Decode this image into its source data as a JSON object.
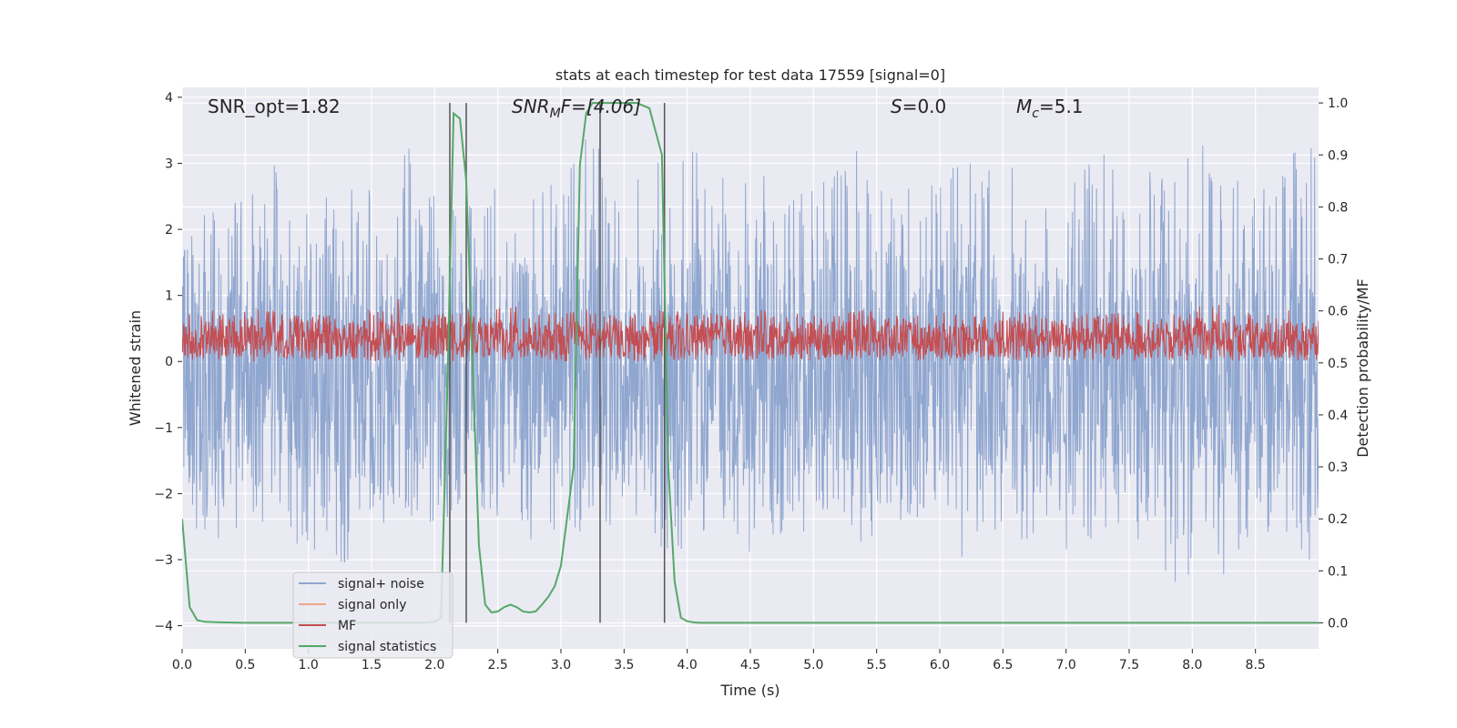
{
  "chart_data": {
    "type": "line",
    "title": "stats at each timestep for test data 17559 [signal=0]",
    "xlabel": "Time (s)",
    "ylabel_left": "Whitened strain",
    "ylabel_right": "Detection probability/MF",
    "xlim": [
      0,
      9.0
    ],
    "ylim_left": [
      -4.35,
      4.15
    ],
    "ylim_right": [
      -0.05,
      1.03
    ],
    "xticks": [
      0.0,
      0.5,
      1.0,
      1.5,
      2.0,
      2.5,
      3.0,
      3.5,
      4.0,
      4.5,
      5.0,
      5.5,
      6.0,
      6.5,
      7.0,
      7.5,
      8.0,
      8.5
    ],
    "xtick_labels": [
      "0.0",
      "0.5",
      "1.0",
      "1.5",
      "2.0",
      "2.5",
      "3.0",
      "3.5",
      "4.0",
      "4.5",
      "5.0",
      "5.5",
      "6.0",
      "6.5",
      "7.0",
      "7.5",
      "8.0",
      "8.5"
    ],
    "yticks_left": [
      -4,
      -3,
      -2,
      -1,
      0,
      1,
      2,
      3,
      4
    ],
    "ytick_labels_left": [
      "−4",
      "−3",
      "−2",
      "−1",
      "0",
      "1",
      "2",
      "3",
      "4"
    ],
    "yticks_right": [
      0.0,
      0.1,
      0.2,
      0.3,
      0.4,
      0.5,
      0.6,
      0.7,
      0.8,
      0.9,
      1.0
    ],
    "ytick_labels_right": [
      "0.0",
      "0.1",
      "0.2",
      "0.3",
      "0.4",
      "0.5",
      "0.6",
      "0.7",
      "0.8",
      "0.9",
      "1.0"
    ],
    "grid": true,
    "legend_position": "bottom-left",
    "annotations": {
      "snr_opt": "SNR_opt=1.82",
      "snr_mf_base": "SNR",
      "snr_mf_sub": "M",
      "snr_mf_rest": "F=[4.06]",
      "s_base": "S",
      "s_rest": "=0.0",
      "mc_base": "M",
      "mc_sub": "c",
      "mc_rest": "=5.1"
    },
    "vertical_lines": [
      2.12,
      2.25,
      3.31,
      3.82
    ],
    "vertical_line_range": [
      0.0,
      1.0
    ],
    "legend": [
      {
        "name": "signal+ noise",
        "color": "#8fa6cf"
      },
      {
        "name": "signal only",
        "color": "#eea587"
      },
      {
        "name": "MF",
        "color": "#c44e52"
      },
      {
        "name": "signal statistics",
        "color": "#55a868"
      }
    ],
    "series": [
      {
        "name": "signal statistics",
        "axis": "right",
        "color": "#55a868",
        "x": [
          0.0,
          0.06,
          0.12,
          0.18,
          0.3,
          0.5,
          1.0,
          1.5,
          1.9,
          2.0,
          2.05,
          2.1,
          2.15,
          2.2,
          2.25,
          2.3,
          2.35,
          2.4,
          2.45,
          2.5,
          2.55,
          2.6,
          2.65,
          2.7,
          2.75,
          2.8,
          2.85,
          2.9,
          2.95,
          3.0,
          3.1,
          3.15,
          3.2,
          3.25,
          3.3,
          3.35,
          3.4,
          3.5,
          3.6,
          3.7,
          3.8,
          3.85,
          3.9,
          3.95,
          4.0,
          4.05,
          4.1,
          4.5,
          5.0,
          6.0,
          7.0,
          8.0,
          9.0
        ],
        "y": [
          0.2,
          0.03,
          0.005,
          0.002,
          0.001,
          0.0,
          0.0,
          0.0,
          0.0,
          0.002,
          0.01,
          0.45,
          0.98,
          0.97,
          0.85,
          0.5,
          0.15,
          0.035,
          0.02,
          0.022,
          0.03,
          0.035,
          0.03,
          0.022,
          0.02,
          0.022,
          0.035,
          0.05,
          0.07,
          0.11,
          0.3,
          0.88,
          0.98,
          1.0,
          1.0,
          1.0,
          1.0,
          1.0,
          1.0,
          0.99,
          0.9,
          0.3,
          0.08,
          0.01,
          0.003,
          0.001,
          0.0,
          0.0,
          0.0,
          0.0,
          0.0,
          0.0,
          0.0
        ]
      },
      {
        "name": "signal+ noise",
        "axis": "left",
        "color": "#8fa6cf",
        "envelope_upper": [
          2.0,
          2.3,
          2.5,
          3.5,
          2.5,
          2.4,
          2.9,
          2.6,
          3.8,
          2.5,
          2.6,
          2.5,
          2.8,
          2.9,
          3.0,
          3.4,
          3.0,
          3.0,
          3.3,
          3.2,
          2.8,
          3.0,
          2.8,
          2.9,
          3.0,
          3.4,
          2.9,
          2.7,
          2.8,
          3.1,
          3.0,
          2.9,
          2.8,
          3.1,
          3.2,
          2.8,
          2.9,
          3.1,
          3.5,
          3.2,
          2.8,
          3.2,
          3.3
        ],
        "envelope_lower": [
          -2.8,
          -2.5,
          -3.2,
          -2.5,
          -2.7,
          -3.0,
          -3.2,
          -2.4,
          -2.5,
          -2.5,
          -2.4,
          -2.3,
          -2.5,
          -2.8,
          -2.6,
          -2.7,
          -2.5,
          -2.4,
          -3.0,
          -2.8,
          -2.5,
          -2.9,
          -2.7,
          -2.6,
          -2.3,
          -2.8,
          -2.6,
          -2.4,
          -2.5,
          -3.4,
          -2.6,
          -2.7,
          -2.8,
          -2.9,
          -2.6,
          -2.6,
          -3.0,
          -3.5,
          -4.0,
          -2.9,
          -2.7,
          -2.8,
          -3.2
        ],
        "band_upper": 1.5,
        "band_lower": -1.7
      },
      {
        "name": "MF",
        "axis": "left",
        "color": "#c44e52",
        "envelope_upper": [
          0.75,
          0.8,
          0.7,
          0.9,
          0.7,
          0.75,
          0.7,
          0.8,
          0.95,
          0.7,
          0.75,
          0.8,
          0.9,
          0.7,
          0.75,
          0.8,
          0.7,
          0.75,
          0.8,
          0.7,
          0.75,
          0.85,
          0.7,
          0.75,
          0.7,
          0.8,
          0.7,
          0.75,
          0.8,
          0.7,
          0.75,
          0.8,
          0.7,
          0.75,
          0.7,
          0.8,
          0.75,
          0.7,
          0.95,
          0.8,
          0.75,
          0.8,
          0.75
        ],
        "envelope_lower": [
          0.0,
          0.05,
          0.0,
          -0.05,
          0.05,
          0.0,
          0.05,
          -0.02,
          0.0,
          0.05,
          0.0,
          0.02,
          0.0,
          0.05,
          0.0,
          0.02,
          0.05,
          0.0,
          0.02,
          0.0,
          0.05,
          0.0,
          0.02,
          0.0,
          0.05,
          0.0,
          0.02,
          0.0,
          0.05,
          0.0,
          0.02,
          0.0,
          0.05,
          0.0,
          0.02,
          0.0,
          0.05,
          0.0,
          0.02,
          0.0,
          0.05,
          0.0,
          0.02
        ],
        "band_upper": 0.6,
        "band_lower": 0.1
      }
    ]
  }
}
